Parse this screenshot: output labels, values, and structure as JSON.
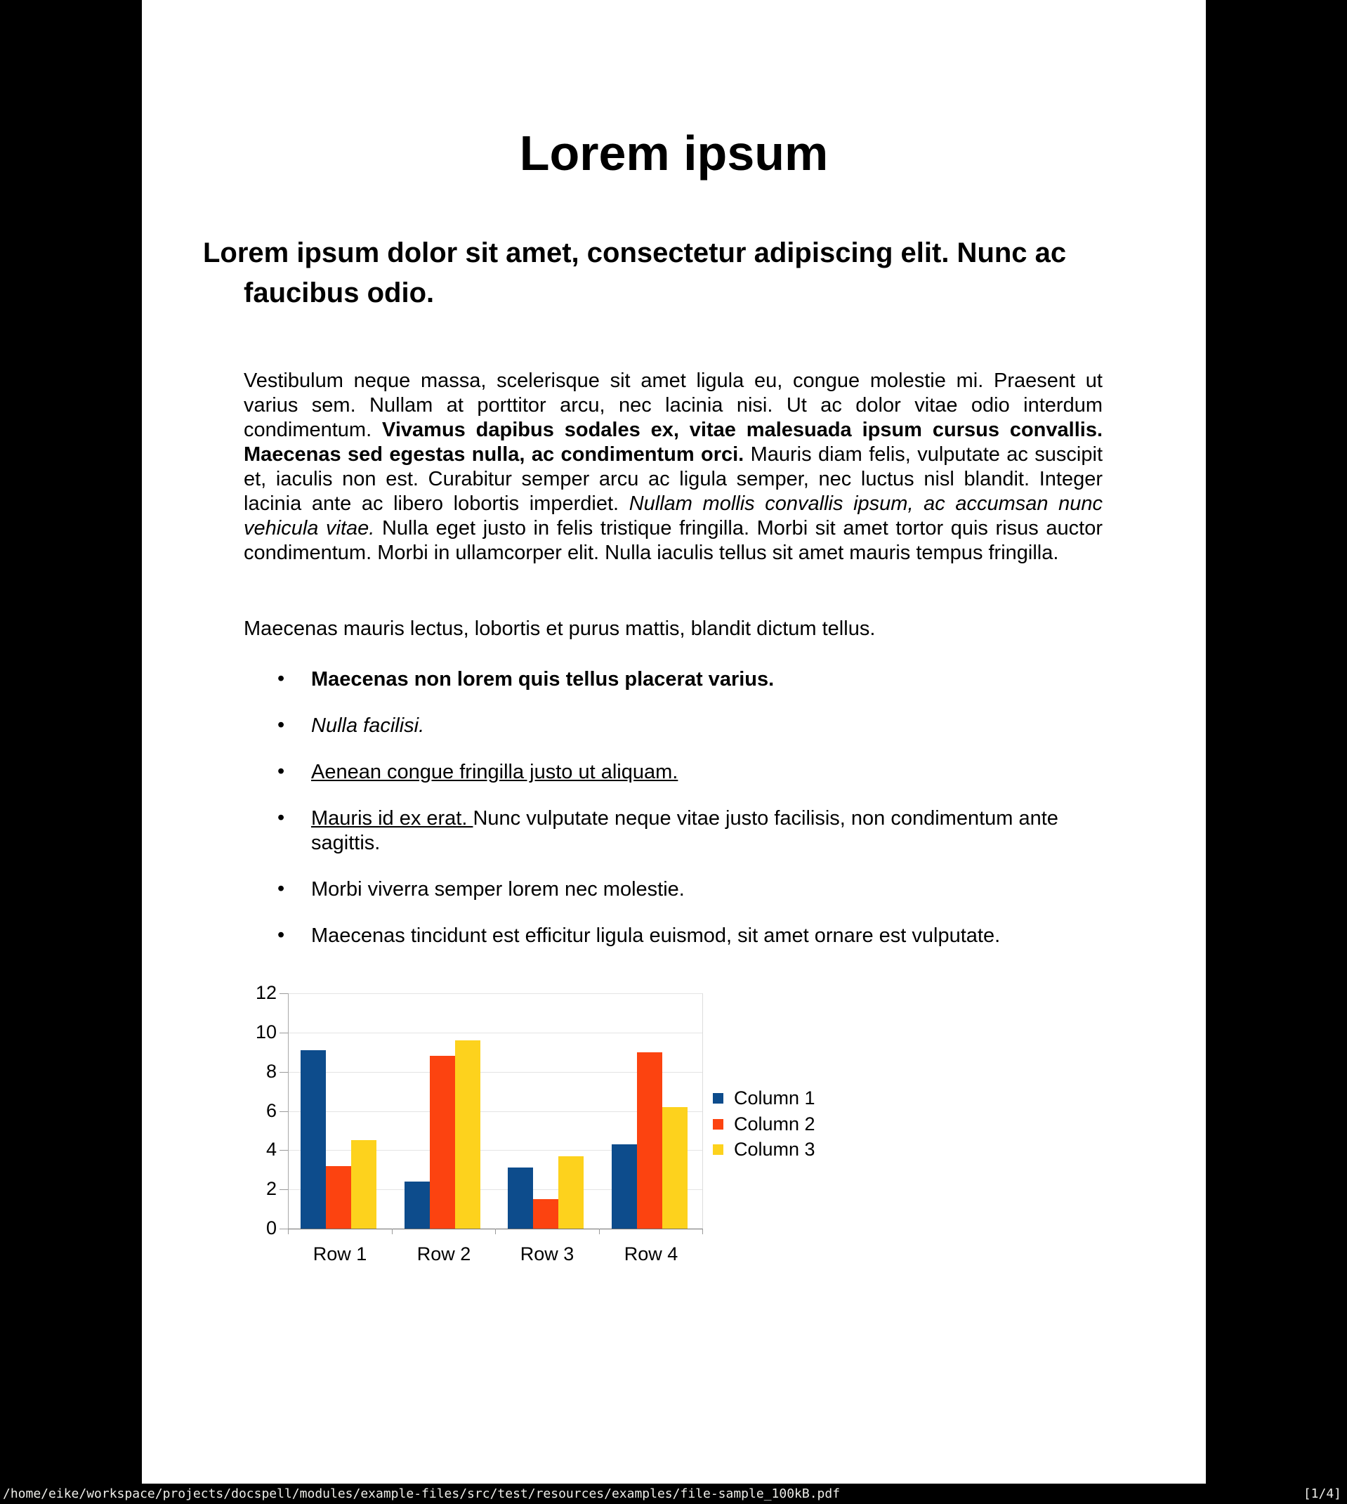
{
  "statusbar": {
    "file_path": "/home/eike/workspace/projects/docspell/modules/example-files/src/test/resources/examples/file-sample_100kB.pdf",
    "page_indicator": "[1/4]"
  },
  "document": {
    "title": "Lorem ipsum",
    "heading": "Lorem ipsum dolor sit amet, consectetur adipiscing elit. Nunc ac faucibus odio.",
    "paragraph1_segments": [
      {
        "text": "Vestibulum neque massa, scelerisque sit amet ligula eu, congue molestie mi. Praesent ut varius sem. Nullam at porttitor arcu, nec lacinia nisi. Ut ac dolor vitae odio interdum condimentum. ",
        "style": "normal"
      },
      {
        "text": "Vivamus dapibus sodales ex, vitae malesuada ipsum cursus convallis. Maecenas sed egestas nulla, ac condimentum orci.",
        "style": "bold"
      },
      {
        "text": " Mauris diam felis, vulputate ac suscipit et, iaculis non est. Curabitur semper arcu ac ligula semper, nec luctus nisl blandit. Integer lacinia ante ac libero lobortis imperdiet. ",
        "style": "normal"
      },
      {
        "text": "Nullam mollis convallis ipsum, ac accumsan nunc vehicula vitae.",
        "style": "italic"
      },
      {
        "text": " Nulla eget justo in felis tristique fringilla. Morbi sit amet tortor quis risus auctor condimentum. Morbi in ullamcorper elit. Nulla iaculis tellus sit amet mauris tempus fringilla.",
        "style": "normal"
      }
    ],
    "paragraph2": "Maecenas mauris lectus, lobortis et purus mattis, blandit dictum tellus.",
    "bullet_marker": "•",
    "bullets": [
      {
        "segments": [
          {
            "text": "Maecenas non lorem quis tellus placerat varius.",
            "style": "bold"
          }
        ]
      },
      {
        "segments": [
          {
            "text": "Nulla facilisi.",
            "style": "italic"
          }
        ]
      },
      {
        "segments": [
          {
            "text": "Aenean congue fringilla justo ut aliquam. ",
            "style": "underline"
          }
        ]
      },
      {
        "segments": [
          {
            "text": "Mauris id ex erat. ",
            "style": "underline"
          },
          {
            "text": "Nunc vulputate neque vitae justo facilisis, non condimentum ante sagittis.",
            "style": "normal"
          }
        ]
      },
      {
        "segments": [
          {
            "text": "Morbi viverra semper lorem nec molestie.",
            "style": "normal"
          }
        ]
      },
      {
        "segments": [
          {
            "text": "Maecenas tincidunt est efficitur ligula euismod, sit amet ornare est vulputate.",
            "style": "normal"
          }
        ]
      }
    ]
  },
  "chart_data": {
    "type": "bar",
    "categories": [
      "Row 1",
      "Row 2",
      "Row 3",
      "Row 4"
    ],
    "series": [
      {
        "name": "Column 1",
        "color": "#0d4c8c",
        "values": [
          9.1,
          2.4,
          3.1,
          4.3
        ]
      },
      {
        "name": "Column 2",
        "color": "#fc4310",
        "values": [
          3.2,
          8.8,
          1.5,
          9.0
        ]
      },
      {
        "name": "Column 3",
        "color": "#fdd21d",
        "values": [
          4.5,
          9.6,
          3.7,
          6.2
        ]
      }
    ],
    "ylim": [
      0,
      12
    ],
    "ytick_step": 2,
    "yticks": [
      0,
      2,
      4,
      6,
      8,
      10,
      12
    ],
    "grid": true,
    "legend_position": "right"
  }
}
